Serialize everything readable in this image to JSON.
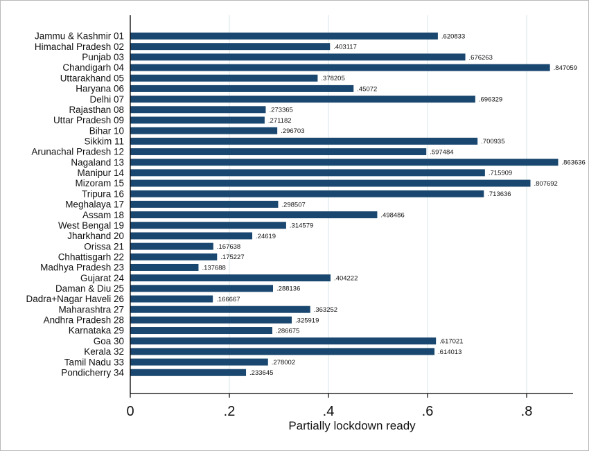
{
  "chart_data": {
    "type": "bar",
    "orientation": "horizontal",
    "xlabel": "Partially lockdown ready",
    "xlim": [
      0,
      0.895
    ],
    "xticks": [
      0,
      0.2,
      0.4,
      0.6,
      0.8
    ],
    "xtick_labels": [
      "0",
      ".2",
      ".4",
      ".6",
      ".8"
    ],
    "grid": true,
    "bar_color": "#1a476f",
    "grid_color": "#d4e6ea",
    "categories": [
      "Jammu & Kashmir 01",
      "Himachal Pradesh 02",
      "Punjab 03",
      "Chandigarh 04",
      "Uttarakhand 05",
      "Haryana 06",
      "Delhi 07",
      "Rajasthan 08",
      "Uttar Pradesh 09",
      "Bihar 10",
      "Sikkim 11",
      "Arunachal Pradesh 12",
      "Nagaland 13",
      "Manipur 14",
      "Mizoram 15",
      "Tripura 16",
      "Meghalaya 17",
      "Assam 18",
      "West Bengal 19",
      "Jharkhand 20",
      "Orissa 21",
      "Chhattisgarh 22",
      "Madhya Pradesh 23",
      "Gujarat 24",
      "Daman & Diu 25",
      "Dadra+Nagar Haveli 26",
      "Maharashtra 27",
      "Andhra Pradesh 28",
      "Karnataka 29",
      "Goa 30",
      "Kerala 32",
      "Tamil Nadu 33",
      "Pondicherry 34"
    ],
    "values": [
      0.620833,
      0.403117,
      0.676263,
      0.847059,
      0.378205,
      0.45072,
      0.696329,
      0.273365,
      0.271182,
      0.296703,
      0.700935,
      0.597484,
      0.863636,
      0.715909,
      0.807692,
      0.713636,
      0.298507,
      0.498486,
      0.314579,
      0.24619,
      0.167638,
      0.175227,
      0.137688,
      0.404222,
      0.288136,
      0.166667,
      0.363252,
      0.325919,
      0.286675,
      0.617021,
      0.614013,
      0.278002,
      0.233645
    ],
    "value_labels": [
      ".620833",
      ".403117",
      ".676263",
      ".847059",
      ".378205",
      ".45072",
      ".696329",
      ".273365",
      ".271182",
      ".296703",
      ".700935",
      ".597484",
      ".863636",
      ".715909",
      ".807692",
      ".713636",
      ".298507",
      ".498486",
      ".314579",
      ".24619",
      ".167638",
      ".175227",
      ".137688",
      ".404222",
      ".288136",
      ".166667",
      ".363252",
      ".325919",
      ".286675",
      ".617021",
      ".614013",
      ".278002",
      ".233645"
    ]
  }
}
